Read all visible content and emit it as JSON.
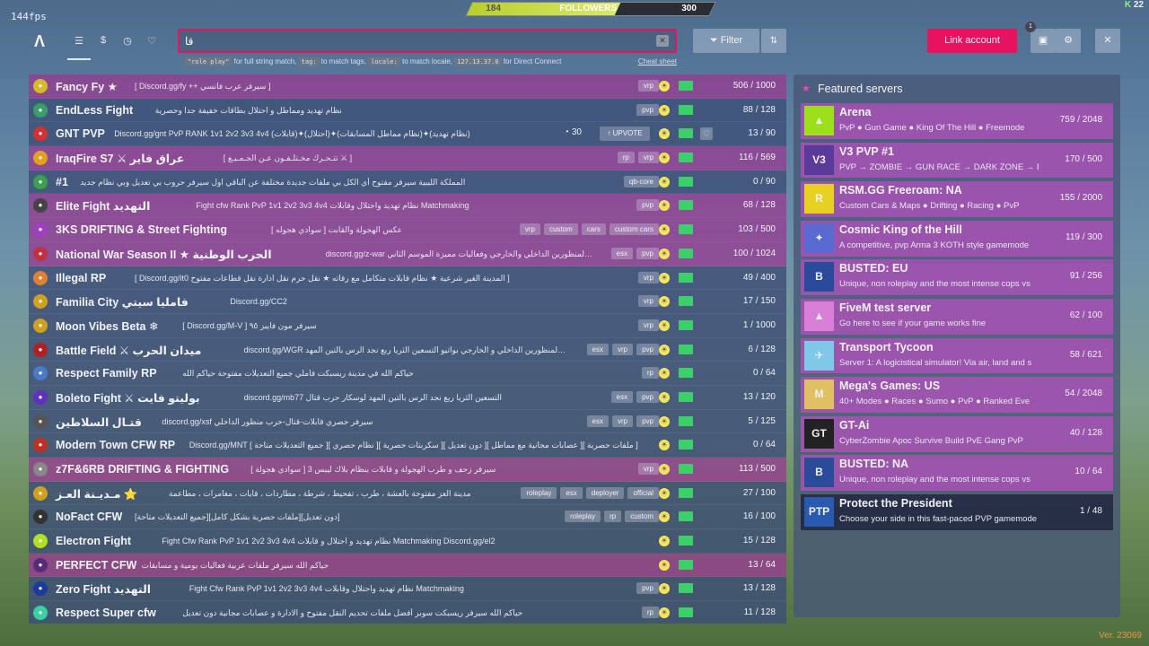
{
  "fps": "144fps",
  "followers": {
    "left": "184",
    "label": "FOLLOWERS",
    "right": "300",
    "progress": 0.61
  },
  "corner": {
    "k": "K",
    "num": "22"
  },
  "nav": {
    "logo": "Λ",
    "icons": [
      "list-icon",
      "dollar-icon",
      "history-icon",
      "heart-icon"
    ]
  },
  "search": {
    "value": "قا",
    "clear": "✕"
  },
  "hints": {
    "code1": "\"role play\"",
    "text1": "for full string match,",
    "code2": "tag:",
    "text2": "to match tags,",
    "code3": "locale:",
    "text3": "to match locale,",
    "code4": "127.13.37.0",
    "text4": "for Direct Connect",
    "cheat": "Cheat sheet"
  },
  "filter_label": "Filter",
  "link_label": "Link account",
  "badge": "1",
  "servers": [
    {
      "name": "Fancy Fy ★",
      "desc": "[ Discord.gg/fy ++ سيرفر عرب فانسي ]",
      "tags": [
        "vrp"
      ],
      "count": "506 / 1000",
      "c": "pink",
      "icon": "#d7b92c"
    },
    {
      "name": "EndLess Fight",
      "desc": "نظام تهديد ومماطل و احتلال بطاقات خفيفة جدا وحصرية",
      "tags": [
        "pvp"
      ],
      "count": "88 / 128",
      "c": "blue",
      "icon": "#3a9e6a"
    },
    {
      "name": "GNT PVP",
      "desc": "Discord.gg/gnt PvP RANK 1v1 2v2 3v3 4v4 (قابلات)✦(احتلال)✦(نظام مماطل المسابقات)✦(نظام تهديد)",
      "tags": [],
      "count": "13 / 90",
      "c": "blue",
      "icon": "#d63030",
      "upvotes": "30",
      "upvote": "UPVOTE"
    },
    {
      "name": "IraqFire S7 ⚔ عراق فاير",
      "desc": "[ تتـحـرك مخـتلـفـون عـن الجـمـيـع ⚔ ]",
      "tags": [
        "rp",
        "vrp"
      ],
      "count": "116 / 569",
      "c": "pink",
      "icon": "#e6a020"
    },
    {
      "name": "#1",
      "desc": "المملكة الليبية سيرفر مفتوح أي الكل بي ملفات جديدة مختلفة عن الباقي اول سيرفر حروب بي تعديل وبي نظام جديد",
      "tags": [
        "qb-core"
      ],
      "count": "0 / 90",
      "c": "blue",
      "icon": "#3aa050"
    },
    {
      "name": "Elite Fight التهديد",
      "desc": "Fight cfw Rank PvP 1v1 2v2 3v3 4v4 نظام تهديد واحتلال وقابلات Matchmaking",
      "tags": [
        "pvp"
      ],
      "count": "68 / 128",
      "c": "pink",
      "icon": "#444"
    },
    {
      "name": "3KS DRIFTING & Street Fighting",
      "desc": "[ سوادي هجوله ] عكس الهجولة والقابت",
      "tags": [
        "vrp",
        "custom",
        "cars",
        "custom cars"
      ],
      "count": "103 / 500",
      "c": "pink",
      "icon": "#a040c0"
    },
    {
      "name": "National War Season II ★ الحرب الوطنية",
      "desc": "discord.gg/z-war افضل سيرفر قابلات حرب وقتال عربي بالمنظورين الداخلي والخارجي وفعاليات مميزة الموسم الثاني",
      "tags": [
        "esx",
        "pvp"
      ],
      "count": "100 / 1024",
      "c": "pink",
      "icon": "#c03040"
    },
    {
      "name": "Illegal RP",
      "desc": "[ Discord.gg/it0 المدينة الغير شرعية ★ نظام قابلات متكامل مع رفاته ★ نقل حرم نقل ادارة نقل قطاعات مفتوح ]",
      "tags": [
        "vrp"
      ],
      "count": "49 / 400",
      "c": "blue",
      "icon": "#e08030"
    },
    {
      "name": "Familia City فامليا سيتي",
      "desc": "Discord.gg/CC2",
      "tags": [
        "vrp"
      ],
      "count": "17 / 150",
      "c": "blue",
      "icon": "#d0a020"
    },
    {
      "name": "Moon Vibes Beta ❄",
      "desc": "[ Discord.gg/M-V ] سيرفر مون فايبز ٩٥",
      "tags": [
        "vrp"
      ],
      "count": "1 / 1000",
      "c": "blue",
      "icon": "#d0a020"
    },
    {
      "name": "Battle Field ⚔ ميدان الحرب",
      "desc": "discord.gg/WGR سيرفر قابلات قتال وحرب عربي بالمنظورين الداخلي و الخارجي بواتيو التسعين الثريا ربع نجد الرس بالتين المهد",
      "tags": [
        "esx",
        "vrp",
        "pvp"
      ],
      "count": "6 / 128",
      "c": "blue",
      "icon": "#b02020"
    },
    {
      "name": "Respect Family RP",
      "desc": "حياكم الله في مدينة ريسبكت فاملي جميع التعديلات مفتوحة حياكم الله",
      "tags": [
        "rp"
      ],
      "count": "0 / 64",
      "c": "blue",
      "icon": "#4a7ac8"
    },
    {
      "name": "Boleto Fight ⚔ بوليتو فايت",
      "desc": "discord.gg/mb77 التسعين الثريا ربع نجد الرس بالتين المهد لوسكار حرب قتال",
      "tags": [
        "esx",
        "pvp"
      ],
      "count": "13 / 120",
      "c": "blue",
      "icon": "#6030c0"
    },
    {
      "name": "قتـال السلاطين",
      "desc": "discord.gg/xsf سيرفر حصري قابلات-قتال-حرب منظور الداخلي",
      "tags": [
        "esx",
        "vrp",
        "pvp"
      ],
      "count": "5 / 125",
      "c": "blue",
      "icon": "#555"
    },
    {
      "name": "Modern Town CFW RP",
      "desc": "Discord.gg/MNT [ جميع التعديلات متاحة ][ نظام حصري ][ سكربتات حصرية ][ دون تعديل ][ عصابات مجانية مع مماطل ][ ملفات حصرية ]",
      "tags": [],
      "count": "0 / 64",
      "c": "blue",
      "icon": "#c03020"
    },
    {
      "name": "z7F&6RB DRIFTING & FIGHTING",
      "desc": "[ سوادي هجولة ] سيرفر زحف و طرب الهجولة و قابلات بنظام بلاك ليبس 3",
      "tags": [
        "vrp"
      ],
      "count": "113 / 500",
      "c": "pink",
      "icon": "#888"
    },
    {
      "name": "مـديـنة العـز ⭐",
      "desc": "مدينة العز مفتوحة بالعشة ، طرب ، تفحيط ، شرطة ، مطاردات ، قابات ، مغامرات ، مطاعمة",
      "tags": [
        "roleplay",
        "esx",
        "deployer",
        "official"
      ],
      "count": "27 / 100",
      "c": "blue",
      "icon": "#d0a020"
    },
    {
      "name": "NoFact CFW",
      "desc": "[جميع التعديلات متاحة][ملفات حصرية بشكل كامل][دون تعديل]",
      "tags": [
        "roleplay",
        "rp",
        "custom"
      ],
      "count": "16 / 100",
      "c": "blue",
      "icon": "#333"
    },
    {
      "name": "Electron Fight",
      "desc": "Fight Cfw Rank PvP 1v1 2v2 3v3 4v4 نظام تهديد و احتلال و قابلات Matchmaking Discord.gg/el2",
      "tags": [],
      "count": "15 / 128",
      "c": "blue",
      "icon": "#b0e020"
    },
    {
      "name": "PERFECT CFW",
      "desc": "حياكم الله سيرفر ملفات عربية فعاليات يومية و مسابقات",
      "tags": [],
      "count": "13 / 64",
      "c": "pink",
      "icon": "#5a2a7a"
    },
    {
      "name": "Zero Fight التهديد",
      "desc": "Fight Cfw Rank PvP 1v1 2v2 3v3 4v4 نظام تهديد واحتلال وقابلات Matchmaking",
      "tags": [
        "pvp"
      ],
      "count": "13 / 128",
      "c": "blue",
      "icon": "#1a3aa0"
    },
    {
      "name": "Respect Super cfw",
      "desc": "حياكم الله سيرفر ريسبكت سوبر أفضل ملفات تحديم النقل مفتوح و الادارة و عصابات مجانية دون تعديل",
      "tags": [
        "rp"
      ],
      "count": "11 / 128",
      "c": "blue",
      "icon": "#3ad0a0"
    }
  ],
  "featured": {
    "title": "Featured servers",
    "items": [
      {
        "name": "Arena",
        "desc": "PvP ● Gun Game ● King Of The Hill ● Freemode",
        "count": "759 / 2048",
        "icon": "#9be01a",
        "glyph": "▲",
        "c": "pink"
      },
      {
        "name": "V3 PVP #1",
        "desc": "PVP → ZOMBIE → GUN RACE → DARK ZONE → F",
        "count": "170 / 500",
        "icon": "#5a3a9a",
        "glyph": "V3",
        "c": "pink"
      },
      {
        "name": "RSM.GG Freeroam: NA",
        "desc": "Custom Cars & Maps ● Drifting ● Racing ● PvP",
        "count": "155 / 2000",
        "icon": "#e8d020",
        "glyph": "R",
        "c": "pink"
      },
      {
        "name": "Cosmic King of the Hill",
        "desc": "A competitive, pvp Arma 3 KOTH style gamemode",
        "count": "119 / 300",
        "icon": "#5a6ad0",
        "glyph": "✦",
        "c": "pink"
      },
      {
        "name": "BUSTED: EU",
        "desc": "Unique, non roleplay and the most intense cops vs",
        "count": "91 / 256",
        "icon": "#2a4a9a",
        "glyph": "B",
        "c": "pink"
      },
      {
        "name": "FiveM test server",
        "desc": "Go here to see if your game works fine",
        "count": "62 / 100",
        "icon": "#d880d8",
        "glyph": "▲",
        "c": "pink"
      },
      {
        "name": "Transport Tycoon",
        "desc": "Server 1: A logicistical simulator! Via air, land and s",
        "count": "58 / 621",
        "icon": "#80c8e8",
        "glyph": "✈",
        "c": "pink"
      },
      {
        "name": "Mega's Games: US",
        "desc": "40+ Modes ● Races ● Sumo ● PvP ● Ranked Eve",
        "count": "54 / 2048",
        "icon": "#e0c060",
        "glyph": "M",
        "c": "pink"
      },
      {
        "name": "GT-Ai",
        "desc": "CyberZombie Apoc Survive Build PvE Gang PvP",
        "count": "40 / 128",
        "icon": "#222",
        "glyph": "GT",
        "c": "pink"
      },
      {
        "name": "BUSTED: NA",
        "desc": "Unique, non roleplay and the most intense cops vs",
        "count": "10 / 64",
        "icon": "#2a4a9a",
        "glyph": "B",
        "c": "pink"
      },
      {
        "name": "Protect the President",
        "desc": "Choose your side in this fast-paced PVP gamemode",
        "count": "1 / 48",
        "icon": "#2a5ab0",
        "glyph": "PTP",
        "c": "dark"
      }
    ]
  },
  "version": "Ver. 23069"
}
